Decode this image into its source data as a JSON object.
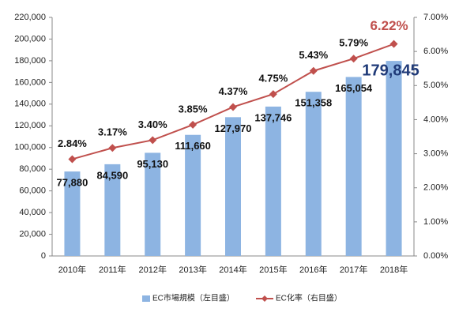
{
  "chart_data": {
    "type": "bar",
    "categories": [
      "2010年",
      "2011年",
      "2012年",
      "2013年",
      "2014年",
      "2015年",
      "2016年",
      "2017年",
      "2018年"
    ],
    "series": [
      {
        "name": "EC市場規模（左目盛）",
        "type": "bar",
        "color": "#8db4e2",
        "values": [
          77880,
          84590,
          95130,
          111660,
          127970,
          137746,
          151358,
          165054,
          179845
        ],
        "value_labels": [
          "77,880",
          "84,590",
          "95,130",
          "111,660",
          "127,970",
          "137,746",
          "151,358",
          "165,054",
          "179,845"
        ]
      },
      {
        "name": "EC化率（右目盛）",
        "type": "line",
        "axis": "y2",
        "color": "#c0504d",
        "values": [
          2.84,
          3.17,
          3.4,
          3.85,
          4.37,
          4.75,
          5.43,
          5.79,
          6.22
        ],
        "value_labels": [
          "2.84%",
          "3.17%",
          "3.40%",
          "3.85%",
          "4.37%",
          "4.75%",
          "5.43%",
          "5.79%",
          "6.22%"
        ]
      }
    ],
    "ylim": [
      0,
      220000
    ],
    "yticks": [
      0,
      {
        "value": 20000,
        "label": "20,000"
      },
      {
        "value": 40000,
        "label": "40,000"
      },
      {
        "value": 60000,
        "label": "60,000"
      },
      {
        "value": 80000,
        "label": "80,000"
      },
      {
        "value": 100000,
        "label": "100,000"
      },
      {
        "value": 120000,
        "label": "120,000"
      },
      {
        "value": 140000,
        "label": "140,000"
      },
      {
        "value": 160000,
        "label": "160,000"
      },
      {
        "value": 180000,
        "label": "180,000"
      },
      {
        "value": 200000,
        "label": "200,000"
      },
      {
        "value": 220000,
        "label": "220,000"
      }
    ],
    "y2lim": [
      0,
      7
    ],
    "y2ticks": [
      {
        "value": 0,
        "label": "0.00%"
      },
      {
        "value": 1,
        "label": "1.00%"
      },
      {
        "value": 2,
        "label": "2.00%"
      },
      {
        "value": 3,
        "label": "3.00%"
      },
      {
        "value": 4,
        "label": "4.00%"
      },
      {
        "value": 5,
        "label": "5.00%"
      },
      {
        "value": 6,
        "label": "6.00%"
      },
      {
        "value": 7,
        "label": "7.00%"
      }
    ],
    "legend": "bottom"
  }
}
